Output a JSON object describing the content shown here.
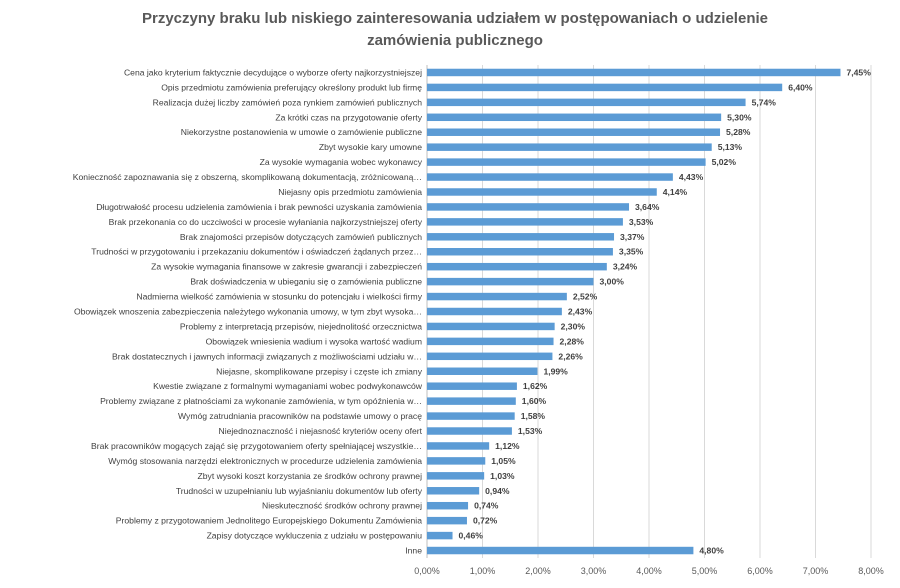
{
  "chart_data": {
    "type": "bar",
    "orientation": "horizontal",
    "title": "Przyczyny braku lub niskiego zainteresowania udziałem w postępowaniach  o udzielenie zamówienia publicznego",
    "categories": [
      "Cena jako kryterium faktycznie decydujące o wyborze oferty najkorzystniejszej",
      "Opis przedmiotu zamówienia preferujący określony produkt lub firmę",
      "Realizacja dużej liczby zamówień poza rynkiem zamówień publicznych",
      "Za krótki czas na przygotowanie oferty",
      "Niekorzystne postanowienia w umowie o zamówienie publiczne",
      "Zbyt wysokie kary umowne",
      "Za wysokie wymagania wobec wykonawcy",
      "Konieczność zapoznawania się z obszerną, skomplikowaną dokumentacją, zróżnicowaną…",
      "Niejasny opis przedmiotu zamówienia",
      "Długotrwałość procesu udzielenia zamówienia i brak pewności uzyskania zamówienia",
      "Brak przekonania co do uczciwości w procesie wyłaniania najkorzystniejszej oferty",
      "Brak znajomości przepisów dotyczących zamówień publicznych",
      "Trudności w przygotowaniu i przekazaniu dokumentów i oświadczeń żądanych przez…",
      "Za wysokie wymagania finansowe w zakresie gwarancji i zabezpieczeń",
      "Brak doświadczenia w ubieganiu się o zamówienia publiczne",
      "Nadmierna wielkość zamówienia w stosunku do potencjału i wielkości firmy",
      "Obowiązek wnoszenia zabezpieczenia należytego wykonania umowy, w tym zbyt wysoka…",
      "Problemy z interpretacją przepisów, niejednolitość orzecznictwa",
      "Obowiązek wniesienia wadium i wysoka wartość wadium",
      "Brak dostatecznych i jawnych informacji związanych z możliwościami udziału w…",
      "Niejasne, skomplikowane przepisy i częste ich zmiany",
      "Kwestie związane z formalnymi wymaganiami wobec podwykonawców",
      "Problemy związane z płatnościami za wykonanie zamówienia, w tym opóźnienia w…",
      "Wymóg zatrudniania pracowników na podstawie umowy o pracę",
      "Niejednoznaczność i niejasność kryteriów oceny ofert",
      "Brak pracowników mogących zająć się przygotowaniem oferty spełniającej wszystkie…",
      "Wymóg stosowania narzędzi elektronicznych w procedurze udzielenia zamówienia",
      "Zbyt wysoki koszt korzystania ze środków ochrony prawnej",
      "Trudności w uzupełnianiu lub wyjaśnianiu dokumentów lub oferty",
      "Nieskuteczność środków ochrony prawnej",
      "Problemy z przygotowaniem Jednolitego Europejskiego Dokumentu Zamówienia",
      "Zapisy dotyczące wykluczenia z udziału w postępowaniu",
      "Inne"
    ],
    "values": [
      7.45,
      6.4,
      5.74,
      5.3,
      5.28,
      5.13,
      5.02,
      4.43,
      4.14,
      3.64,
      3.53,
      3.37,
      3.35,
      3.24,
      3.0,
      2.52,
      2.43,
      2.3,
      2.28,
      2.26,
      1.99,
      1.62,
      1.6,
      1.58,
      1.53,
      1.12,
      1.05,
      1.03,
      0.94,
      0.74,
      0.72,
      0.46,
      4.8
    ],
    "value_labels": [
      "7,45%",
      "6,40%",
      "5,74%",
      "5,30%",
      "5,28%",
      "5,13%",
      "5,02%",
      "4,43%",
      "4,14%",
      "3,64%",
      "3,53%",
      "3,37%",
      "3,35%",
      "3,24%",
      "3,00%",
      "2,52%",
      "2,43%",
      "2,30%",
      "2,28%",
      "2,26%",
      "1,99%",
      "1,62%",
      "1,60%",
      "1,58%",
      "1,53%",
      "1,12%",
      "1,05%",
      "1,03%",
      "0,94%",
      "0,74%",
      "0,72%",
      "0,46%",
      "4,80%"
    ],
    "xlim": [
      0,
      8
    ],
    "xticks": [
      0,
      1,
      2,
      3,
      4,
      5,
      6,
      7,
      8
    ],
    "xtick_labels": [
      "0,00%",
      "1,00%",
      "2,00%",
      "3,00%",
      "4,00%",
      "5,00%",
      "6,00%",
      "7,00%",
      "8,00%"
    ],
    "grid": true,
    "colors": {
      "bar": "#5b9bd5",
      "grid": "#d9d9d9",
      "axis": "#bfbfbf"
    }
  }
}
